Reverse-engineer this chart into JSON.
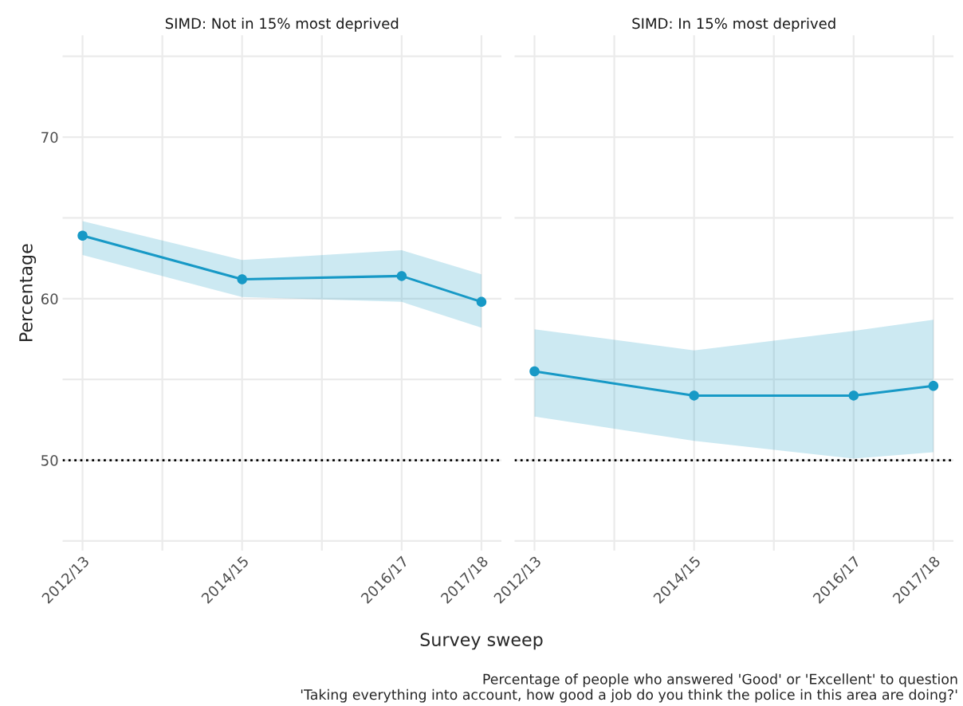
{
  "chart_data": [
    {
      "type": "line",
      "title": "SIMD: Not in 15% most deprived",
      "ylabel": "Percentage",
      "xlabel": "Survey sweep",
      "categories": [
        "2012/13",
        null,
        "2014/15",
        null,
        "2016/17",
        "2017/18"
      ],
      "series": [
        {
          "color": "#1799c6",
          "values": [
            63.9,
            null,
            61.2,
            null,
            61.4,
            59.8
          ],
          "lower": [
            62.7,
            null,
            60.1,
            null,
            59.8,
            58.2
          ],
          "upper": [
            64.8,
            null,
            62.4,
            null,
            63.0,
            61.5
          ]
        }
      ],
      "ylim": [
        44.4,
        76.3
      ],
      "yticks": [
        {
          "value": 45,
          "label": null
        },
        50,
        {
          "value": 55,
          "label": null
        },
        60,
        {
          "value": 65,
          "label": null
        },
        70,
        {
          "value": 75,
          "label": null
        }
      ],
      "ref_lines": [
        {
          "axis": "y",
          "value": 50,
          "color": "#000000",
          "line_style": "dotted"
        }
      ],
      "grid": true,
      "marker": "circle",
      "line_style": "solid"
    },
    {
      "type": "line",
      "title": "SIMD: In 15% most deprived",
      "categories": [
        "2012/13",
        null,
        "2014/15",
        null,
        "2016/17",
        "2017/18"
      ],
      "series": [
        {
          "color": "#1799c6",
          "values": [
            55.5,
            null,
            54.0,
            null,
            54.0,
            54.6
          ],
          "lower": [
            52.7,
            null,
            51.2,
            null,
            50.1,
            50.5
          ],
          "upper": [
            58.1,
            null,
            56.8,
            null,
            58.0,
            58.7
          ]
        }
      ],
      "ylim": [
        44.4,
        76.3
      ],
      "yticks": [
        {
          "value": 45,
          "label": null
        },
        50,
        {
          "value": 55,
          "label": null
        },
        60,
        {
          "value": 65,
          "label": null
        },
        70,
        {
          "value": 75,
          "label": null
        }
      ],
      "ref_lines": [
        {
          "axis": "y",
          "value": 50,
          "color": "#000000",
          "line_style": "dotted"
        }
      ],
      "tick_labels": "x",
      "annotations": [
        "Percentage of people who answered 'Good' or 'Excellent' to question\n'Taking everything into account, how good a job do you think the police in this area are doing?'"
      ],
      "grid": true,
      "marker": "circle",
      "line_style": "solid"
    }
  ]
}
